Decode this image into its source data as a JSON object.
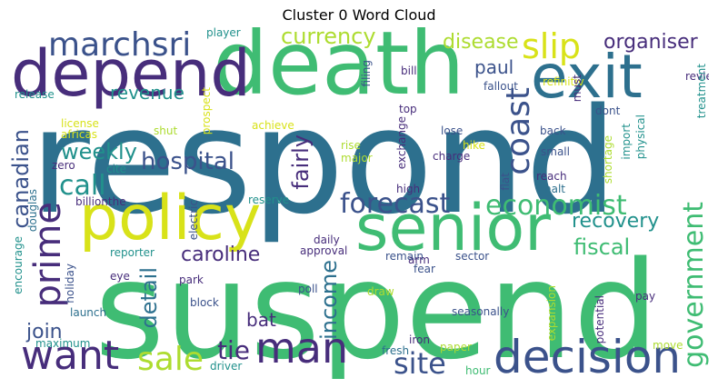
{
  "title": "Cluster 0 Word Cloud",
  "colors": {
    "teal": "#2d708e",
    "green": "#3fbc73",
    "lime": "#d8e219",
    "purple": "#472d7b",
    "blue": "#3b528b",
    "lightgreen": "#5ec962",
    "yellowgreen": "#addc30",
    "cyan": "#21918c"
  },
  "words": [
    "respond",
    "suspend",
    "death",
    "depend",
    "policy",
    "senior",
    "exit",
    "decision",
    "want",
    "man",
    "marchsri",
    "slip",
    "prime",
    "sale",
    "economist",
    "forecast",
    "hospital",
    "site",
    "coast",
    "government",
    "call",
    "weekly",
    "currency",
    "disease",
    "organiser",
    "paul",
    "revenue",
    "canadian",
    "caroline",
    "recovery",
    "fiscal",
    "detail",
    "income",
    "fairly",
    "join",
    "tie",
    "bat",
    "player",
    "filing",
    "bill",
    "fallout",
    "refinitiv",
    "review",
    "must",
    "release",
    "license",
    "africas",
    "prospect",
    "shut",
    "achieve",
    "top",
    "lose",
    "back",
    "dont",
    "rise",
    "major",
    "exchange",
    "hike",
    "charge",
    "small",
    "import",
    "physical",
    "shortage",
    "treatment",
    "zero",
    "cite",
    "reach",
    "halt",
    "high",
    "billionthe",
    "reserve",
    "flat",
    "electric",
    "douglas",
    "daily",
    "arm",
    "reporter",
    "approval",
    "encourage",
    "eye",
    "park",
    "holiday",
    "poll",
    "remain",
    "fear",
    "sector",
    "block",
    "launch",
    "maximum",
    "draw",
    "seasonally",
    "pay",
    "expansion",
    "potential",
    "iron",
    "fresh",
    "paper",
    "driver",
    "hour",
    "move"
  ]
}
